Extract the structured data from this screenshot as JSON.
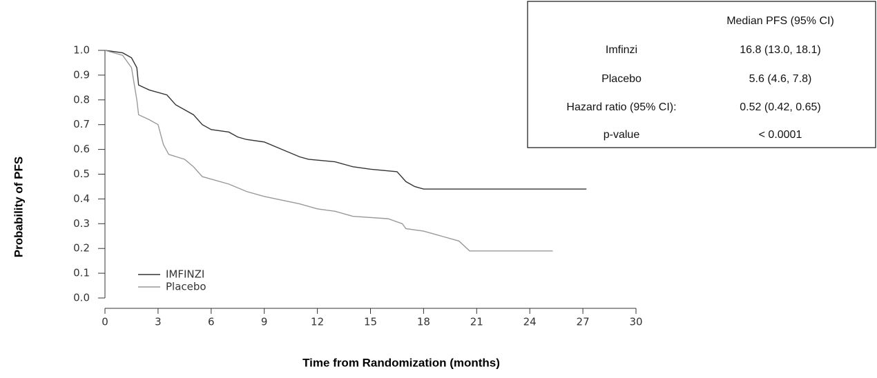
{
  "chart_data": {
    "type": "line",
    "xlabel": "Time from Randomization (months)",
    "ylabel": "Probability of PFS",
    "xlim": [
      0,
      30
    ],
    "xticks": [
      0,
      3,
      6,
      9,
      12,
      15,
      18,
      21,
      24,
      27,
      30
    ],
    "ylim": [
      0,
      1
    ],
    "yticks": [
      {
        "value": 0,
        "label": "0.0"
      },
      0.1,
      0.2,
      0.3,
      0.4,
      0.5,
      0.6,
      0.7,
      0.8,
      0.9,
      {
        "value": 1,
        "label": "1.0"
      }
    ],
    "series": [
      {
        "name": "IMFINZI",
        "color": "#333333",
        "x": [
          0,
          1,
          1.5,
          1.8,
          1.9,
          2.5,
          3.5,
          4,
          5,
          5.5,
          6,
          7,
          7.5,
          8,
          9,
          10,
          11,
          11.5,
          13,
          14,
          15,
          16.5,
          17,
          17.5,
          18,
          27.2
        ],
        "values": [
          1.0,
          0.99,
          0.97,
          0.93,
          0.86,
          0.84,
          0.82,
          0.78,
          0.74,
          0.7,
          0.68,
          0.67,
          0.65,
          0.64,
          0.63,
          0.6,
          0.57,
          0.56,
          0.55,
          0.53,
          0.52,
          0.51,
          0.47,
          0.45,
          0.44,
          0.44
        ]
      },
      {
        "name": "Placebo",
        "color": "#999999",
        "x": [
          0,
          1,
          1.5,
          1.8,
          1.9,
          2.5,
          3,
          3.3,
          3.6,
          4.5,
          5,
          5.5,
          6,
          7,
          8,
          9,
          11,
          12,
          13,
          14,
          16,
          16.8,
          17,
          18,
          19,
          20,
          20.6,
          25.3
        ],
        "values": [
          1.0,
          0.98,
          0.93,
          0.8,
          0.74,
          0.72,
          0.7,
          0.62,
          0.58,
          0.56,
          0.53,
          0.49,
          0.48,
          0.46,
          0.43,
          0.41,
          0.38,
          0.36,
          0.35,
          0.33,
          0.32,
          0.3,
          0.28,
          0.27,
          0.25,
          0.23,
          0.19,
          0.19
        ]
      }
    ]
  },
  "table": {
    "rows": [
      [
        "",
        "Median PFS (95% CI)"
      ],
      [
        "Imfinzi",
        "16.8 (13.0, 18.1)"
      ],
      [
        "Placebo",
        "5.6 (4.6, 7.8)"
      ],
      [
        "Hazard ratio (95% CI):",
        "0.52 (0.42, 0.65)"
      ],
      [
        "p-value",
        "< 0.0001"
      ]
    ]
  }
}
